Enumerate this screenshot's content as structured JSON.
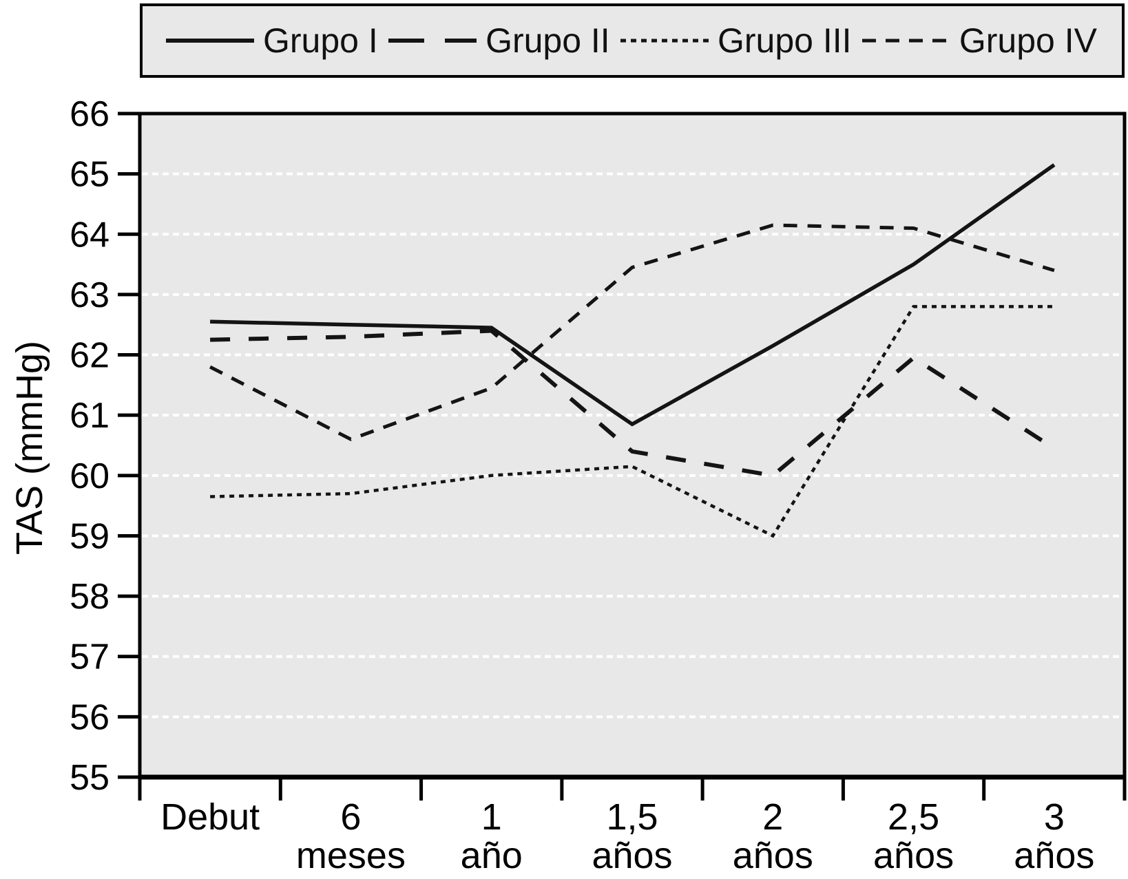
{
  "colors": {
    "page_background": "#ffffff",
    "plot_background": "#e8e8e8",
    "legend_background": "#e8e8e8",
    "line_color": "#141414",
    "grid_color": "#ffffff",
    "border_color": "#000000",
    "text_color": "#000000"
  },
  "chart_data": {
    "type": "line",
    "title": "",
    "xlabel": "",
    "ylabel": "TAS (mmHg)",
    "legend_position": "top",
    "grid": {
      "horizontal": true,
      "style": "dashed",
      "color": "#ffffff"
    },
    "ylim": [
      55,
      66
    ],
    "ytick_step": 1,
    "ytick_labels": [
      "55",
      "56",
      "57",
      "58",
      "59",
      "60",
      "61",
      "62",
      "63",
      "64",
      "65",
      "66"
    ],
    "categories": [
      "Debut",
      "6 meses",
      "1 año",
      "1,5 años",
      "2 años",
      "2,5 años",
      "3 años"
    ],
    "series": [
      {
        "name": "Grupo I",
        "line_style": "solid",
        "values": [
          62.55,
          62.5,
          62.45,
          60.85,
          62.15,
          63.5,
          65.15
        ]
      },
      {
        "name": "Grupo II",
        "line_style": "long-dash",
        "values": [
          62.25,
          62.3,
          62.4,
          60.4,
          60.0,
          61.95,
          60.45
        ]
      },
      {
        "name": "Grupo III",
        "line_style": "dotted",
        "values": [
          59.65,
          59.7,
          60.0,
          60.15,
          59.0,
          62.8,
          62.8
        ]
      },
      {
        "name": "Grupo IV",
        "line_style": "dash",
        "values": [
          61.8,
          60.6,
          61.45,
          63.45,
          64.15,
          64.1,
          63.4
        ]
      }
    ]
  }
}
